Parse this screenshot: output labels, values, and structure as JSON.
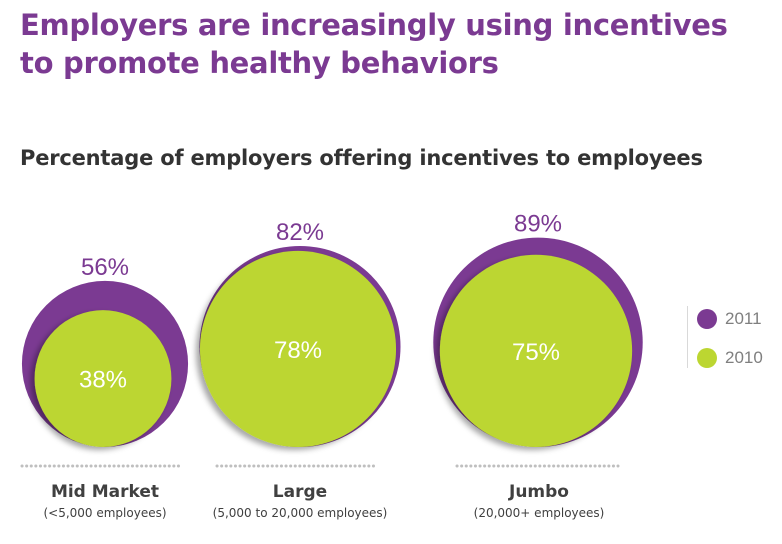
{
  "title": "Employers are increasingly using incentives to promote healthy behaviors",
  "colors": {
    "title": "#7B3A92",
    "series_2011": "#7B3A92",
    "series_2010": "#BCD631",
    "dots": "#bfbfbf"
  },
  "chart_data": {
    "type": "bubble",
    "title": "Percentage of employers offering incentives to employees",
    "categories": [
      {
        "name": "Mid Market",
        "note": "(<5,000 employees)"
      },
      {
        "name": "Large",
        "note": "(5,000 to 20,000 employees)"
      },
      {
        "name": "Jumbo",
        "note": "(20,000+ employees)"
      }
    ],
    "series": [
      {
        "name": "2011",
        "values": [
          56,
          82,
          89
        ],
        "labels": [
          "56%",
          "82%",
          "89%"
        ]
      },
      {
        "name": "2010",
        "values": [
          38,
          78,
          75
        ],
        "labels": [
          "38%",
          "78%",
          "75%"
        ]
      }
    ],
    "unit": "%",
    "legend_position": "right"
  }
}
